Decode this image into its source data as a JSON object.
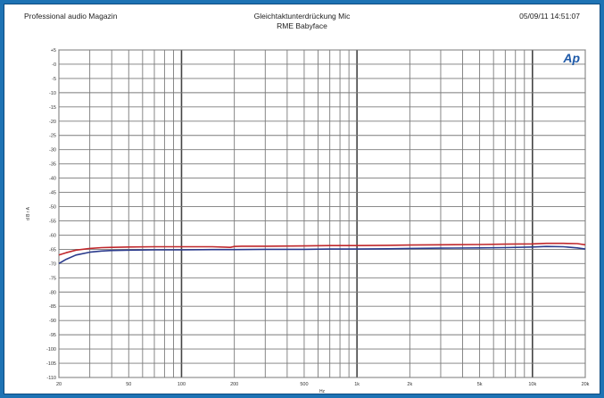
{
  "header": {
    "left": "Professional audio Magazin",
    "title": "Gleichtaktunterdrückung Mic",
    "subtitle": "RME Babyface",
    "timestamp": "05/09/11 14:51:07"
  },
  "logo": "Ap",
  "colors": {
    "background": "#1e73b4",
    "grid": "#7a7a7a",
    "red_trace": "#c0282c",
    "blue_trace": "#2a3a8c",
    "logo": "#1f5aa8"
  },
  "chart_data": {
    "type": "line",
    "title": "Gleichtaktunterdrückung Mic",
    "subtitle": "RME Babyface",
    "xlabel": "Hz",
    "ylabel": "d B r A",
    "xscale": "log",
    "xlim": [
      20,
      20000
    ],
    "ylim": [
      -110,
      5
    ],
    "grid": true,
    "x_ticks": [
      {
        "value": 20,
        "label": "20"
      },
      {
        "value": 50,
        "label": "50"
      },
      {
        "value": 100,
        "label": "100"
      },
      {
        "value": 200,
        "label": "200"
      },
      {
        "value": 500,
        "label": "500"
      },
      {
        "value": 1000,
        "label": "1k"
      },
      {
        "value": 2000,
        "label": "2k"
      },
      {
        "value": 5000,
        "label": "5k"
      },
      {
        "value": 10000,
        "label": "10k"
      },
      {
        "value": 20000,
        "label": "20k"
      }
    ],
    "y_ticks": [
      5,
      0,
      -5,
      -10,
      -15,
      -20,
      -25,
      -30,
      -35,
      -40,
      -45,
      -50,
      -55,
      -60,
      -65,
      -70,
      -75,
      -80,
      -85,
      -90,
      -95,
      -100,
      -105,
      -110
    ],
    "y_tick_labels": [
      "+5",
      "-0",
      "-5",
      "-10",
      "-15",
      "-20",
      "-25",
      "-30",
      "-35",
      "-40",
      "-45",
      "-50",
      "-55",
      "-60",
      "-65",
      "-70",
      "-75",
      "-80",
      "-85",
      "-90",
      "-95",
      "-100",
      "-105",
      "-110"
    ],
    "series": [
      {
        "color": "#c0282c",
        "x": [
          20,
          22,
          25,
          30,
          35,
          40,
          50,
          70,
          100,
          150,
          190,
          200,
          220,
          300,
          500,
          700,
          1000,
          1500,
          2000,
          3000,
          5000,
          7000,
          10000,
          12000,
          15000,
          18000,
          20000
        ],
        "y": [
          -67.0,
          -66.2,
          -65.3,
          -64.7,
          -64.4,
          -64.3,
          -64.2,
          -64.1,
          -64.1,
          -64.1,
          -64.3,
          -64.0,
          -63.9,
          -63.9,
          -63.8,
          -63.7,
          -63.7,
          -63.6,
          -63.5,
          -63.4,
          -63.3,
          -63.2,
          -63.1,
          -62.9,
          -62.9,
          -63.0,
          -63.4
        ]
      },
      {
        "color": "#2a3a8c",
        "x": [
          20,
          22,
          25,
          30,
          35,
          40,
          50,
          70,
          100,
          150,
          200,
          300,
          500,
          700,
          1000,
          1500,
          2000,
          3000,
          5000,
          7000,
          10000,
          12000,
          15000,
          18000,
          20000
        ],
        "y": [
          -70.0,
          -68.5,
          -67.0,
          -66.0,
          -65.6,
          -65.4,
          -65.3,
          -65.2,
          -65.2,
          -65.1,
          -65.1,
          -65.0,
          -65.0,
          -64.9,
          -64.9,
          -64.8,
          -64.7,
          -64.6,
          -64.5,
          -64.4,
          -64.2,
          -64.0,
          -64.1,
          -64.5,
          -64.9
        ]
      }
    ]
  }
}
